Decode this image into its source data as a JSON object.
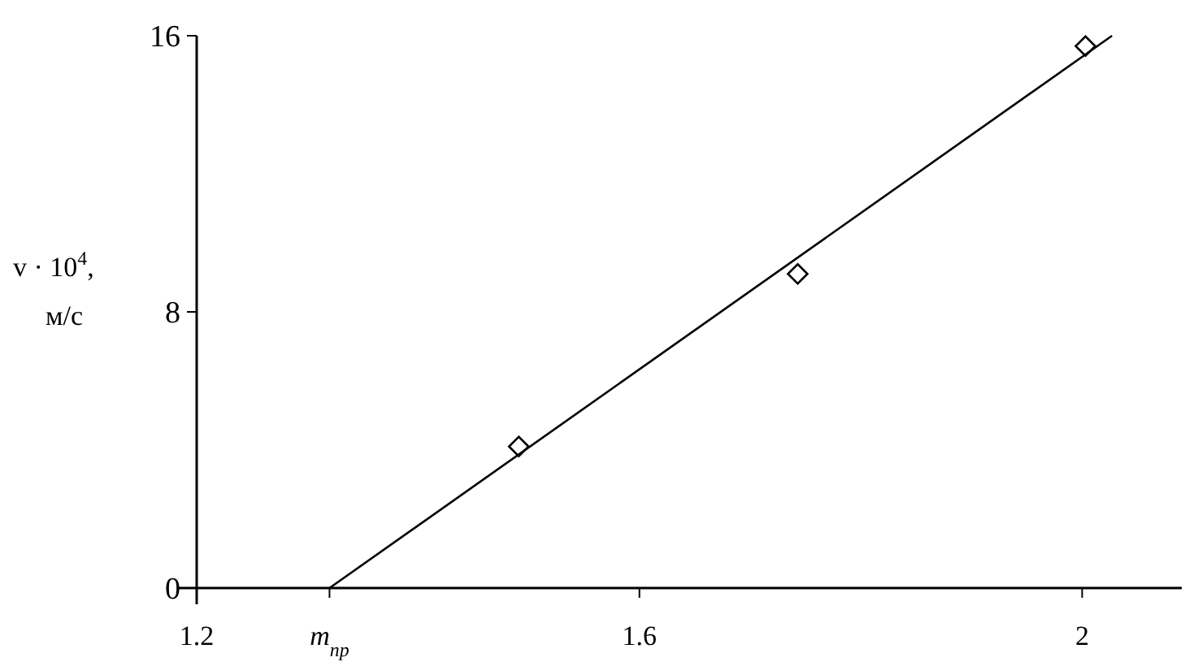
{
  "chart_data": {
    "type": "scatter",
    "xlabel": null,
    "ylabel": "v · 10$^{4}$, м/с",
    "xlim": [
      1.2,
      2.09
    ],
    "ylim": [
      0,
      16
    ],
    "xticks": [
      {
        "value": 1.2,
        "label": "1.2"
      },
      {
        "value": 1.32,
        "label": "m$_{пр}$"
      },
      {
        "value": 1.6,
        "label": "1.6"
      },
      {
        "value": 2,
        "label": "2"
      }
    ],
    "yticks": [
      0,
      8,
      16
    ],
    "grid": false,
    "marker": "diamond",
    "series": [
      {
        "color": "#000000",
        "x": [
          1.491,
          1.743,
          2.003
        ],
        "values": [
          4.1,
          9.1,
          15.7
        ]
      },
      {
        "type": "line",
        "color": "#000000",
        "marker": "none",
        "line_style": "solid",
        "x": [
          1.32,
          2.027
        ],
        "values": [
          0,
          16
        ]
      }
    ]
  }
}
